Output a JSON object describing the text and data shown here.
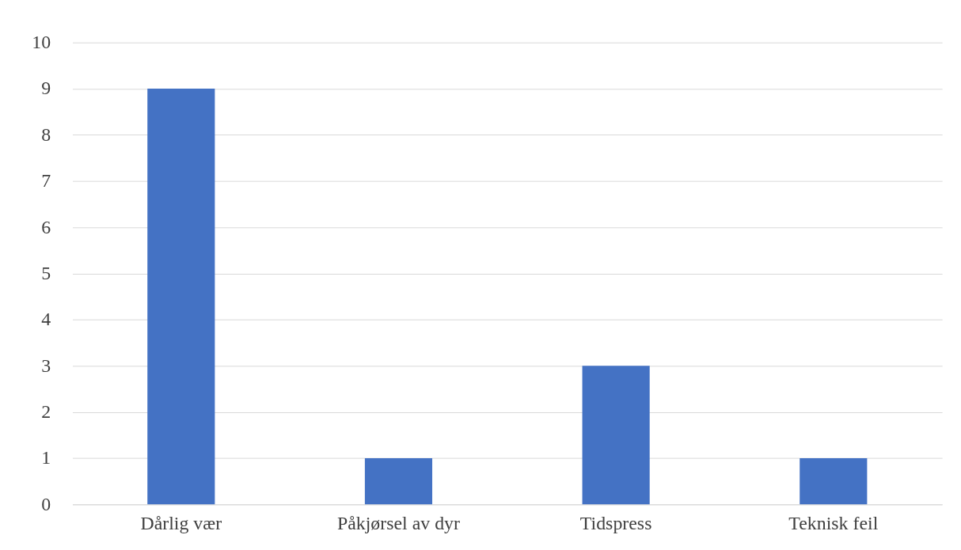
{
  "chart_data": {
    "type": "bar",
    "categories": [
      "Dårlig vær",
      "Påkjørsel av dyr",
      "Tidspress",
      "Teknisk feil"
    ],
    "values": [
      9,
      1,
      3,
      1
    ],
    "color": "#4472c4",
    "ylim": [
      0,
      10
    ],
    "yticks": [
      0,
      1,
      2,
      3,
      4,
      5,
      6,
      7,
      8,
      9,
      10
    ],
    "grid": "y"
  }
}
